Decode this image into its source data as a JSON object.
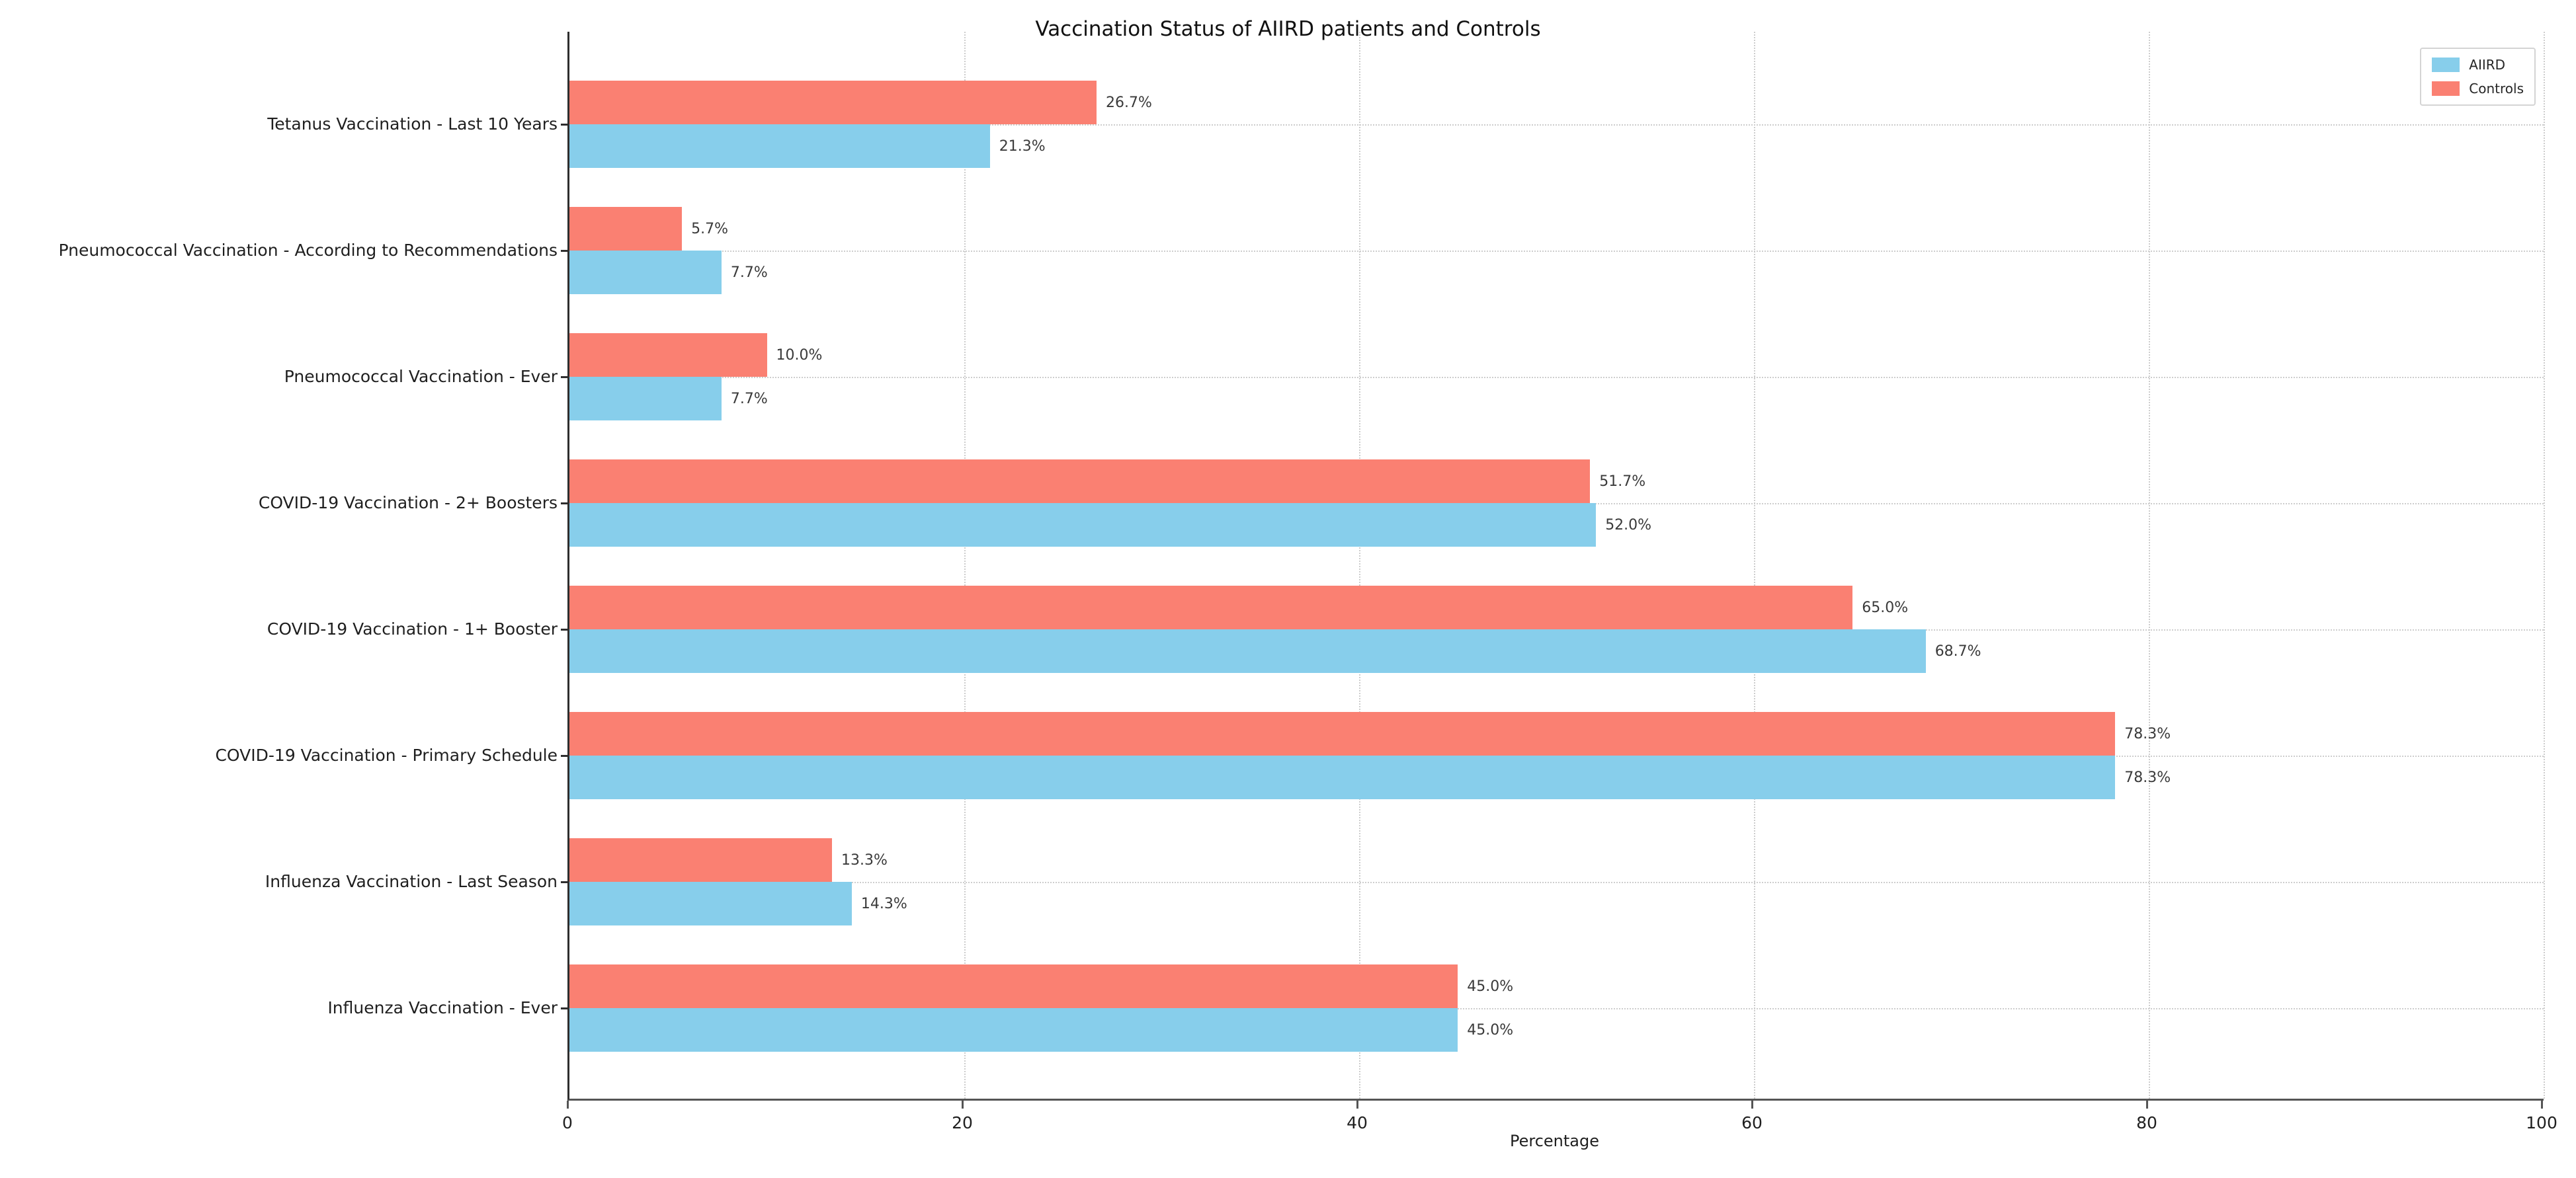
{
  "figure": {
    "background": "#ffffff",
    "title": "Vaccination Status of AIIRD patients and Controls"
  },
  "chart_data": {
    "type": "bar",
    "orientation": "horizontal",
    "title": "Vaccination Status of AIIRD patients and Controls",
    "xlabel": "Percentage",
    "ylabel": "",
    "xlim": [
      0,
      100
    ],
    "xticks": [
      0,
      20,
      40,
      60,
      80,
      100
    ],
    "grid": {
      "on": true,
      "style": "dotted",
      "color": "#cdcdcd",
      "axes": "both"
    },
    "legend": {
      "position": "upper right",
      "entries": [
        "AIIRD",
        "Controls"
      ]
    },
    "bar_order_within_group_top_to_bottom": [
      "Controls",
      "AIIRD"
    ],
    "categories_top_to_bottom": [
      "Tetanus Vaccination - Last 10 Years",
      "Pneumococcal Vaccination - According to Recommendations",
      "Pneumococcal Vaccination - Ever",
      "COVID-19 Vaccination - 2+ Boosters",
      "COVID-19 Vaccination - 1+ Booster",
      "COVID-19 Vaccination - Primary Schedule",
      "Influenza Vaccination - Last Season",
      "Influenza Vaccination - Ever"
    ],
    "series": [
      {
        "name": "AIIRD",
        "color": "#87CEEB",
        "values": [
          21.3,
          7.7,
          7.7,
          52.0,
          68.7,
          78.3,
          14.3,
          45.0
        ],
        "labels": [
          "21.3%",
          "7.7%",
          "7.7%",
          "52.0%",
          "68.7%",
          "78.3%",
          "14.3%",
          "45.0%"
        ]
      },
      {
        "name": "Controls",
        "color": "#FA8072",
        "values": [
          26.7,
          5.7,
          10.0,
          51.7,
          65.0,
          78.3,
          13.3,
          45.0
        ],
        "labels": [
          "26.7%",
          "5.7%",
          "10.0%",
          "51.7%",
          "65.0%",
          "78.3%",
          "13.3%",
          "45.0%"
        ]
      }
    ],
    "xtick_labels": [
      "0",
      "20",
      "40",
      "60",
      "80",
      "100"
    ]
  },
  "colors": {
    "aiird": "#87CEEB",
    "controls": "#FA8072",
    "grid": "#cdcdcd",
    "spine": "#2e2e2e",
    "text": "#1f1f1f"
  }
}
